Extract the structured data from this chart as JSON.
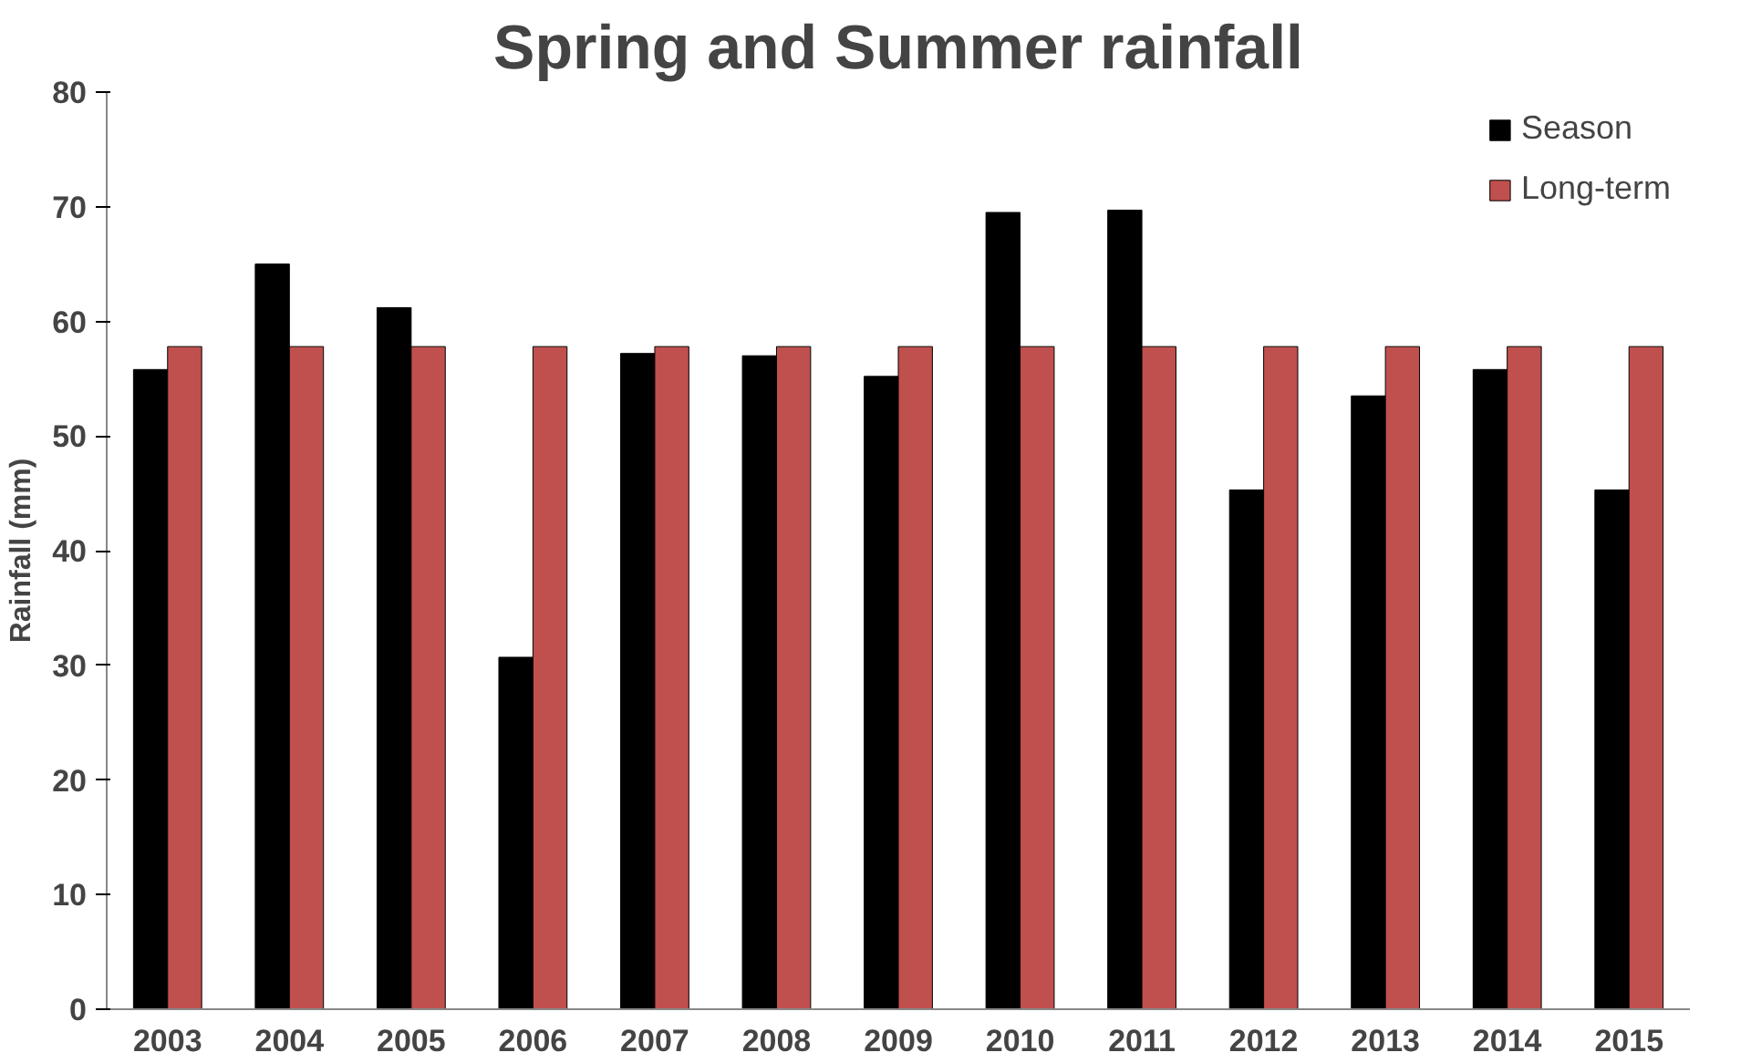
{
  "chart_data": {
    "type": "bar",
    "title": "Spring and Summer rainfall",
    "ylabel": "Rainfall (mm)",
    "categories": [
      "2003",
      "2004",
      "2005",
      "2006",
      "2007",
      "2008",
      "2009",
      "2010",
      "2011",
      "2012",
      "2013",
      "2014",
      "2015"
    ],
    "series": [
      {
        "name": "Season",
        "color": "#000000",
        "values": [
          55.8,
          65,
          61.2,
          30.7,
          57.2,
          57,
          55.2,
          69.5,
          69.7,
          45.3,
          53.5,
          55.8,
          45.3
        ]
      },
      {
        "name": "Long-term",
        "color": "#c0504d",
        "values": [
          57.8,
          57.8,
          57.8,
          57.8,
          57.8,
          57.8,
          57.8,
          57.8,
          57.8,
          57.8,
          57.8,
          57.8,
          57.8
        ]
      }
    ],
    "ylim": [
      0,
      80
    ],
    "yticks": [
      0,
      10,
      20,
      30,
      40,
      50,
      60,
      70,
      80
    ],
    "grid": false,
    "legend": "top right"
  }
}
